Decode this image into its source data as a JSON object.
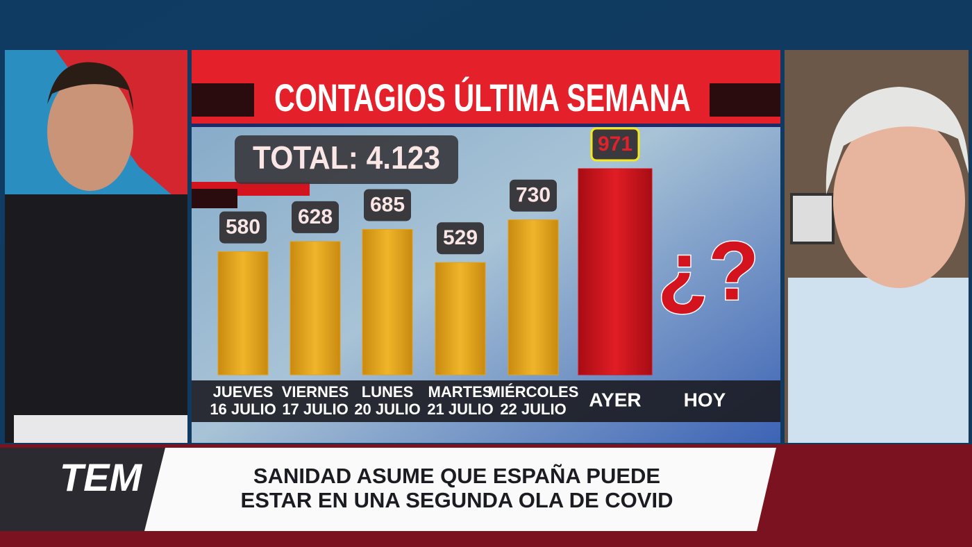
{
  "chart_data": {
    "type": "bar",
    "title": "CONTAGIOS ÚLTIMA SEMANA",
    "subtitle": "TOTAL: 4.123",
    "categories": [
      [
        "JUEVES",
        "16 JULIO"
      ],
      [
        "VIERNES",
        "17 JULIO"
      ],
      [
        "LUNES",
        "20 JULIO"
      ],
      [
        "MARTES",
        "21 JULIO"
      ],
      [
        "MIÉRCOLES",
        "22 JULIO"
      ],
      [
        "AYER"
      ],
      [
        "HOY"
      ]
    ],
    "values": [
      580,
      628,
      685,
      529,
      730,
      971,
      null
    ],
    "colors": [
      "#e0a21c",
      "#e0a21c",
      "#e0a21c",
      "#e0a21c",
      "#e0a21c",
      "#d3141f",
      "#d3141f"
    ],
    "annotation": "¿?"
  },
  "banner": {
    "logo": "TEM",
    "headline": [
      "SANIDAD ASUME QUE ESPAÑA PUEDE",
      "ESTAR EN UNA SEGUNDA OLA DE COVID"
    ]
  }
}
